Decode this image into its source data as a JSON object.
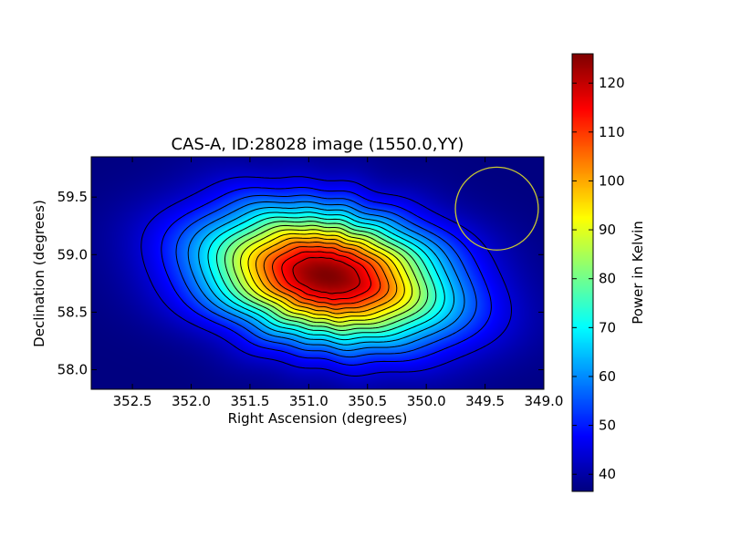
{
  "chart_data": {
    "type": "heatmap",
    "title": "CAS-A, ID:28028 image (1550.0,YY)",
    "xlabel": "Right Ascension (degrees)",
    "ylabel": "Declination (degrees)",
    "colorbar_label": "Power in Kelvin",
    "x_range": [
      352.85,
      349.0
    ],
    "y_range": [
      57.83,
      59.85
    ],
    "x_ticks": [
      "352.5",
      "352.0",
      "351.5",
      "351.0",
      "350.5",
      "350.0",
      "349.5",
      "349.0"
    ],
    "x_tick_values": [
      352.5,
      352.0,
      351.5,
      351.0,
      350.5,
      350.0,
      349.5,
      349.0
    ],
    "y_ticks": [
      "58.0",
      "58.5",
      "59.0",
      "59.5"
    ],
    "y_tick_values": [
      58.0,
      58.5,
      59.0,
      59.5
    ],
    "colorbar_range": [
      36.5,
      126
    ],
    "colorbar_ticks": [
      "40",
      "50",
      "60",
      "70",
      "80",
      "90",
      "100",
      "110",
      "120"
    ],
    "colorbar_tick_values": [
      40,
      50,
      60,
      70,
      80,
      90,
      100,
      110,
      120
    ],
    "colormap": "jet",
    "source": {
      "ra": 350.85,
      "dec": 58.82,
      "peak": 126,
      "floor": 36.5
    },
    "contour_levels": [
      44,
      49,
      54,
      59,
      64,
      69,
      74,
      79,
      84,
      89,
      94,
      99,
      104,
      109,
      114,
      119
    ],
    "beam_circle": {
      "ra": 349.4,
      "dec": 59.4,
      "radius_deg": 0.36,
      "color": "#c8c832"
    }
  }
}
